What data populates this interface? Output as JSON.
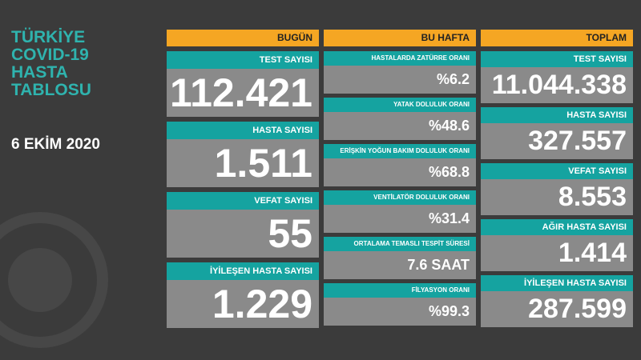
{
  "header": {
    "title_lines": [
      "TÜRKİYE",
      "COVID-19",
      "HASTA",
      "TABLOSU"
    ],
    "date": "6 EKİM 2020"
  },
  "columns": [
    {
      "heading": "BUGÜN",
      "items": [
        {
          "label": "TEST SAYISI",
          "value": "112.421"
        },
        {
          "label": "HASTA SAYISI",
          "value": "1.511"
        },
        {
          "label": "VEFAT SAYISI",
          "value": "55"
        },
        {
          "label": "İYİLEŞEN HASTA SAYISI",
          "value": "1.229"
        }
      ]
    },
    {
      "heading": "BU HAFTA",
      "items": [
        {
          "label": "HASTALARDA ZATÜRRE ORANI",
          "value": "%6.2"
        },
        {
          "label": "YATAK DOLULUK ORANI",
          "value": "%48.6"
        },
        {
          "label": "ERİŞKİN YOĞUN BAKIM DOLULUK ORANI",
          "value": "%68.8"
        },
        {
          "label": "VENTİLATÖR DOLULUK ORANI",
          "value": "%31.4"
        },
        {
          "label": "ORTALAMA TEMASLI TESPİT SÜRESİ",
          "value": "7.6 SAAT"
        },
        {
          "label": "FİLYASYON ORANI",
          "value": "%99.3"
        }
      ]
    },
    {
      "heading": "TOPLAM",
      "items": [
        {
          "label": "TEST SAYISI",
          "value": "11.044.338"
        },
        {
          "label": "HASTA SAYISI",
          "value": "327.557"
        },
        {
          "label": "VEFAT SAYISI",
          "value": "8.553"
        },
        {
          "label": "AĞIR HASTA SAYISI",
          "value": "1.414"
        },
        {
          "label": "İYİLEŞEN HASTA SAYISI",
          "value": "287.599"
        }
      ]
    }
  ]
}
